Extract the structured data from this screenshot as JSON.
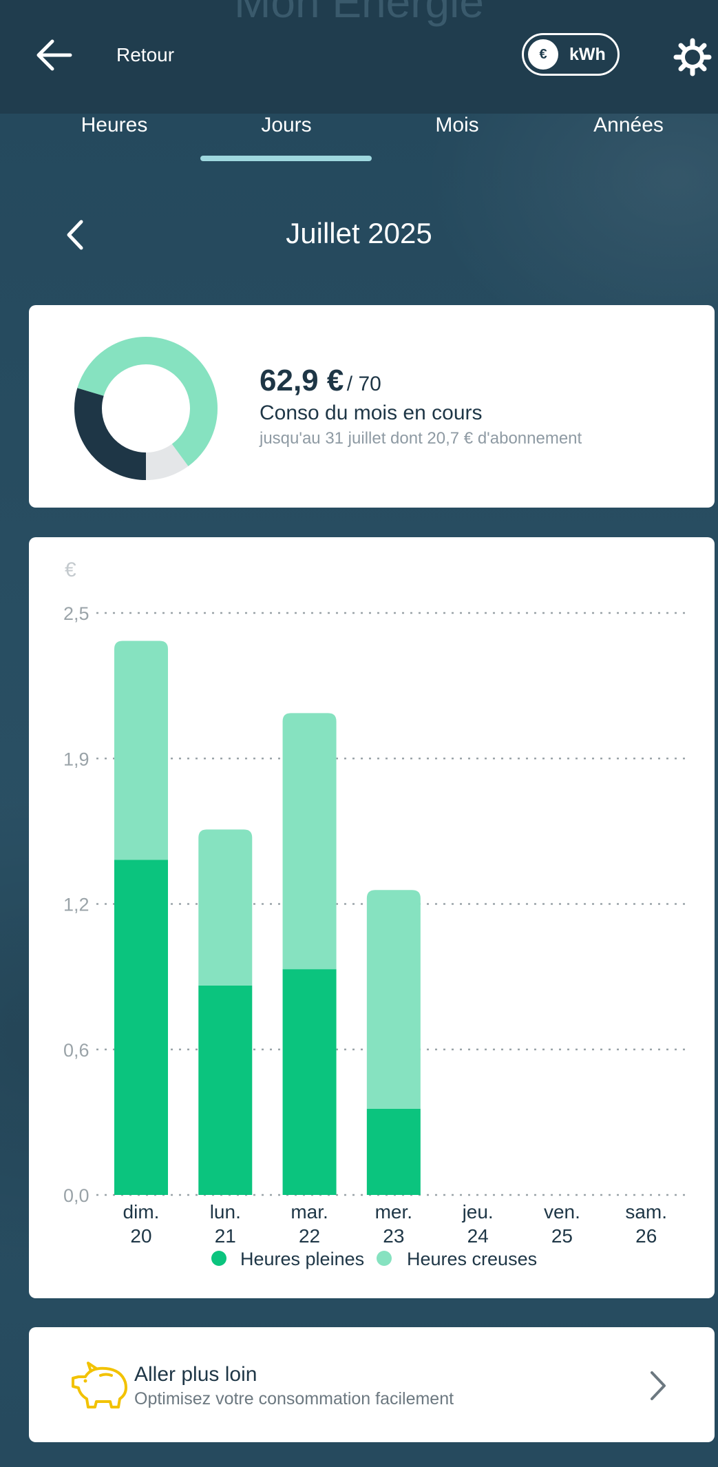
{
  "header": {
    "title": "Mon Energie",
    "back_label": "Retour",
    "toggle": {
      "left": "€",
      "right": "kWh"
    }
  },
  "tabs": [
    {
      "label": "Heures"
    },
    {
      "label": "Jours",
      "active": true
    },
    {
      "label": "Mois"
    },
    {
      "label": "Années"
    }
  ],
  "month": {
    "title": "Juillet 2025"
  },
  "summary": {
    "amount": "62,9 €",
    "budget": "/ 70",
    "label": "Conso du mois en cours",
    "sub": "jusqu'au 31 juillet dont 20,7 € d'abonnement",
    "donut": {
      "consumed_fraction": 0.899,
      "subscription_fraction": 0.296
    }
  },
  "chart_data": {
    "type": "bar",
    "stacked": true,
    "ylabel": "€",
    "ylim": [
      0,
      2.5
    ],
    "yticks": [
      "0,0",
      "0,6",
      "1,2",
      "1,9",
      "2,5"
    ],
    "ytick_values": [
      0,
      0.625,
      1.25,
      1.875,
      2.5
    ],
    "categories": [
      {
        "day": "dim.",
        "date": "20"
      },
      {
        "day": "lun.",
        "date": "21"
      },
      {
        "day": "mar.",
        "date": "22"
      },
      {
        "day": "mer.",
        "date": "23"
      },
      {
        "day": "jeu.",
        "date": "24"
      },
      {
        "day": "ven.",
        "date": "25"
      },
      {
        "day": "sam.",
        "date": "26"
      }
    ],
    "series": [
      {
        "name": "Heures pleines",
        "color": "#0bc47e",
        "values": [
          1.44,
          0.9,
          0.97,
          0.37,
          null,
          null,
          null
        ]
      },
      {
        "name": "Heures creuses",
        "color": "#86e2c0",
        "values": [
          0.94,
          0.67,
          1.1,
          0.94,
          null,
          null,
          null
        ]
      }
    ],
    "grid": true,
    "legend": "bottom"
  },
  "more": {
    "title": "Aller plus loin",
    "sub": "Optimisez votre consommation facilement"
  },
  "colors": {
    "background": "#264a5e",
    "topbar": "#203d4e",
    "text_dark": "#1e3646",
    "tab_indicator": "#9fd8df",
    "accent_yellow": "#f2c200"
  }
}
